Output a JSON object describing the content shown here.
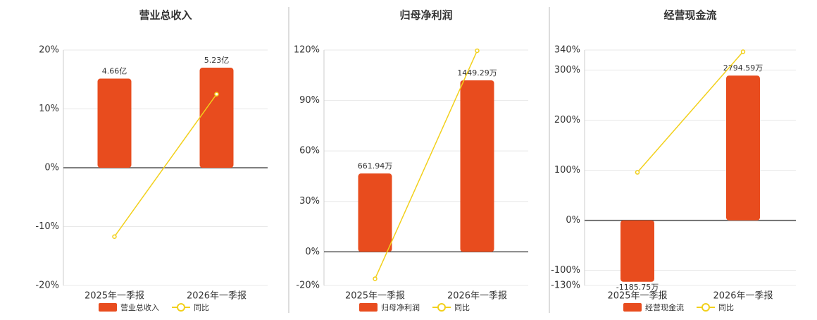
{
  "chart_data": [
    {
      "type": "bar",
      "title": "营业总收入",
      "categories": [
        "2025年一季报",
        "2026年一季报"
      ],
      "series": [
        {
          "name": "营业总收入",
          "type": "bar",
          "color": "#e84c1e",
          "values": [
            4.66,
            5.23
          ],
          "value_labels": [
            "4.66亿",
            "5.23亿"
          ]
        },
        {
          "name": "同比",
          "type": "line",
          "color": "#f2d01b",
          "values": [
            -11.7,
            12.5
          ]
        }
      ],
      "ylim": [
        -20,
        20
      ],
      "yticks": [
        {
          "value": -20,
          "label": "-20%"
        },
        {
          "value": -10,
          "label": "-10%"
        },
        {
          "value": 0,
          "label": "0%"
        },
        {
          "value": 10,
          "label": "10%"
        },
        {
          "value": 20,
          "label": "20%"
        }
      ],
      "grid": true
    },
    {
      "type": "bar",
      "title": "归母净利润",
      "categories": [
        "2025年一季报",
        "2026年一季报"
      ],
      "series": [
        {
          "name": "归母净利润",
          "type": "bar",
          "color": "#e84c1e",
          "values": [
            661.94,
            1449.29
          ],
          "value_labels": [
            "661.94万",
            "1449.29万"
          ]
        },
        {
          "name": "同比",
          "type": "line",
          "color": "#f2d01b",
          "values": [
            -16,
            119.6
          ]
        }
      ],
      "ylim": [
        -20,
        120
      ],
      "yticks": [
        {
          "value": -20,
          "label": "-20%"
        },
        {
          "value": 0,
          "label": "0%"
        },
        {
          "value": 30,
          "label": "30%"
        },
        {
          "value": 60,
          "label": "60%"
        },
        {
          "value": 90,
          "label": "90%"
        },
        {
          "value": 120,
          "label": "120%"
        }
      ],
      "grid": true
    },
    {
      "type": "bar",
      "title": "经营现金流",
      "categories": [
        "2025年一季报",
        "2026年一季报"
      ],
      "series": [
        {
          "name": "经营现金流",
          "type": "bar",
          "color": "#e84c1e",
          "values": [
            -1185.75,
            2794.59
          ],
          "value_labels": [
            "-1185.75万",
            "2794.59万"
          ]
        },
        {
          "name": "同比",
          "type": "line",
          "color": "#f2d01b",
          "values": [
            95.8,
            336.6
          ]
        }
      ],
      "ylim": [
        -130,
        340
      ],
      "yticks": [
        {
          "value": -130,
          "label": "-130%"
        },
        {
          "value": -100,
          "label": "-100%"
        },
        {
          "value": 0,
          "label": "0%"
        },
        {
          "value": 100,
          "label": "100%"
        },
        {
          "value": 200,
          "label": "200%"
        },
        {
          "value": 300,
          "label": "300%"
        },
        {
          "value": 340,
          "label": "340%"
        }
      ],
      "grid": true
    }
  ]
}
